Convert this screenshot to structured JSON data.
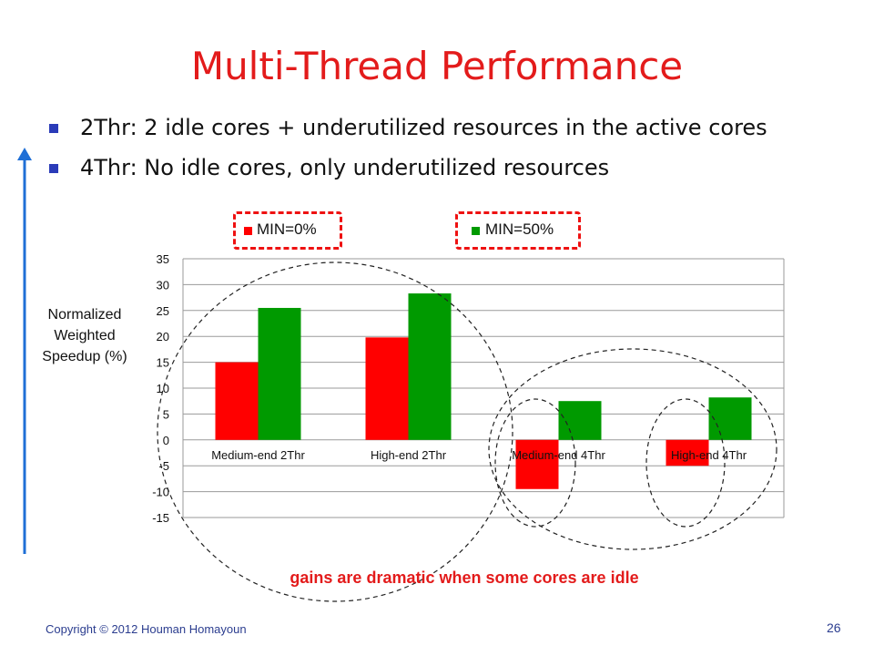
{
  "slide": {
    "title": "Multi-Thread Performance",
    "bullets": [
      "2Thr: 2 idle cores + underutilized resources in the active cores",
      "4Thr: No idle cores, only underutilized resources"
    ],
    "annotation": "gains are dramatic when some cores are idle",
    "copyright": "Copyright © 2012 Houman Homayoun",
    "page_number": "26"
  },
  "colors": {
    "title": "#e31b1b",
    "bullet_marker": "#2a3bb8",
    "arrow": "#1f6fd6",
    "series_min0": "#ff0000",
    "series_min50": "#009a00",
    "legend_frame": "#e11111"
  },
  "chart_data": {
    "type": "bar",
    "title": "",
    "xlabel": "",
    "ylabel_lines": [
      "Normalized",
      "Weighted",
      "Speedup (%)"
    ],
    "categories": [
      "Medium-end 2Thr",
      "High-end 2Thr",
      "Medium-end 4Thr",
      "High-end 4Thr"
    ],
    "series": [
      {
        "name": "MIN=0%",
        "values": [
          15,
          19.8,
          -9.5,
          -5
        ]
      },
      {
        "name": "MIN=50%",
        "values": [
          25.5,
          28.3,
          7.5,
          8.2
        ]
      }
    ],
    "ylim": [
      -15,
      35
    ],
    "yticks": [
      35,
      30,
      25,
      20,
      15,
      10,
      5,
      0,
      -5,
      -10,
      -15
    ],
    "grid": true,
    "legend": "top"
  }
}
